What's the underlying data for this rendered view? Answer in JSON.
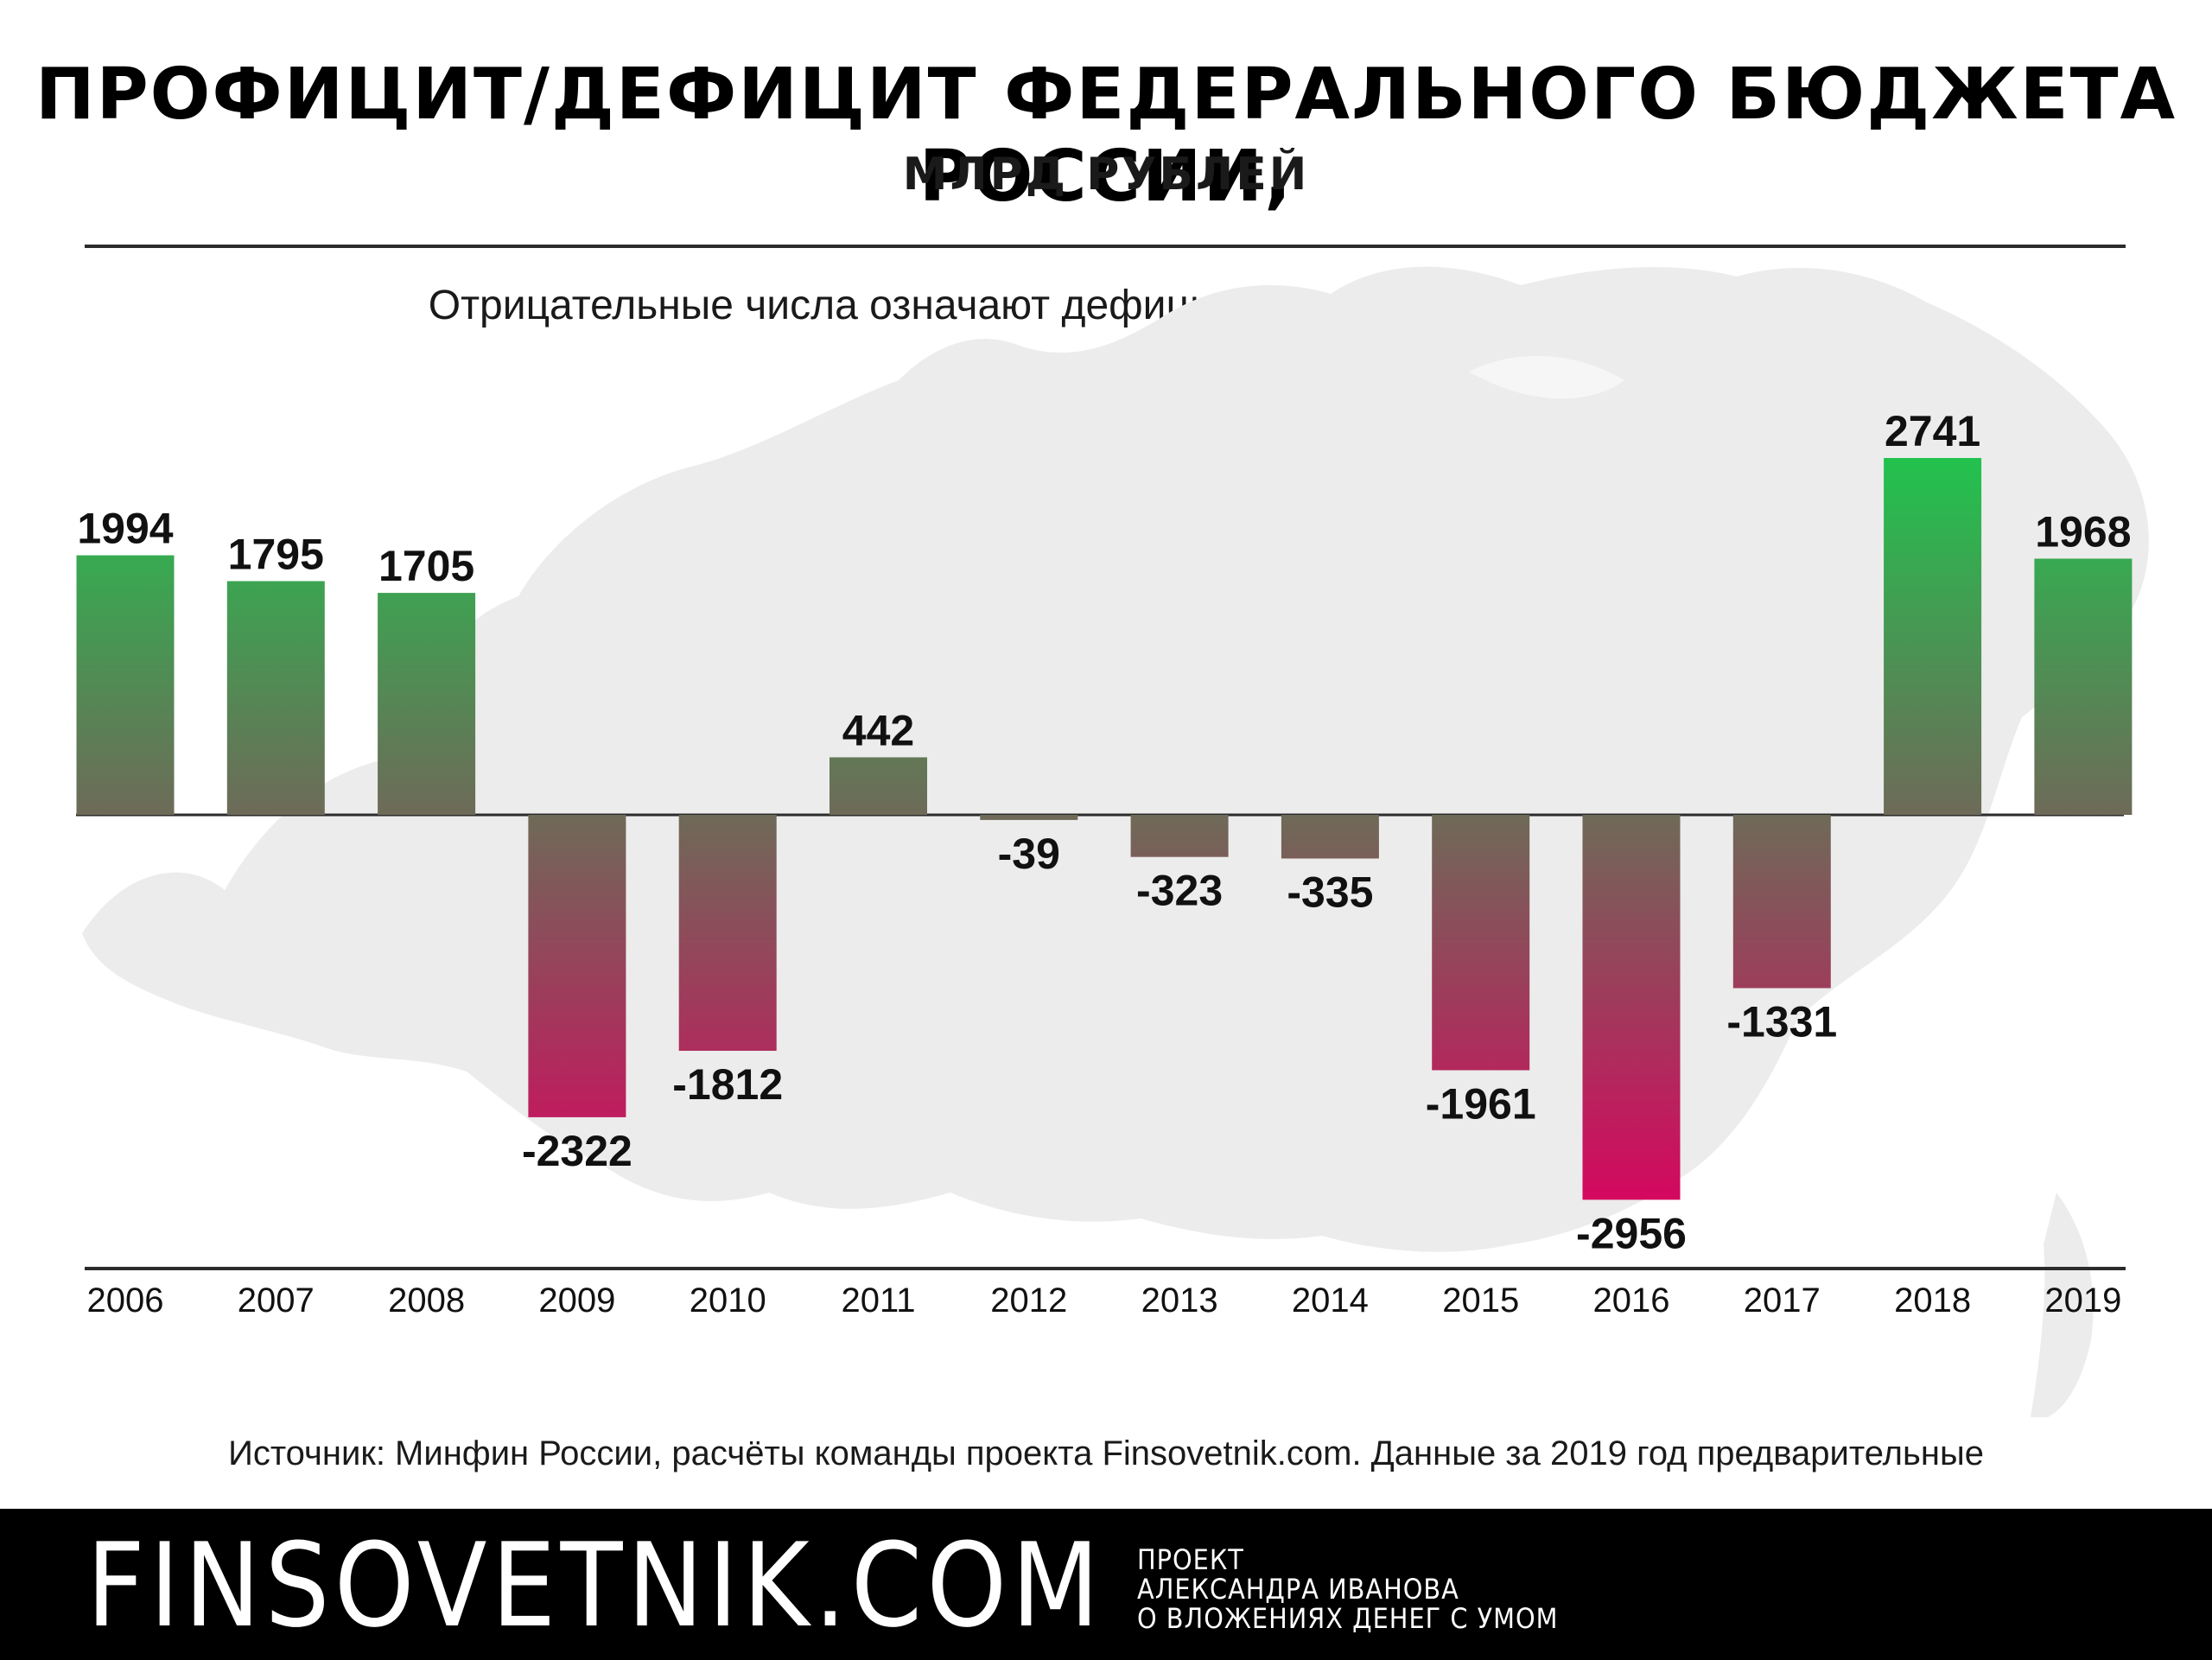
{
  "header": {
    "title": "ПРОФИЦИТ/ДЕФИЦИТ ФЕДЕРАЛЬНОГО БЮДЖЕТА РОССИИ,",
    "subtitle": "МЛРД РУБЛЕЙ",
    "note": "Отрицательные числа означают дефицит, положительные - профицит"
  },
  "chart_data": {
    "type": "bar",
    "title": "ПРОФИЦИТ/ДЕФИЦИТ ФЕДЕРАЛЬНОГО БЮДЖЕТА РОССИИ, МЛРД РУБЛЕЙ",
    "xlabel": "",
    "ylabel": "",
    "categories": [
      "2006",
      "2007",
      "2008",
      "2009",
      "2010",
      "2011",
      "2012",
      "2013",
      "2014",
      "2015",
      "2016",
      "2017",
      "2018",
      "2019"
    ],
    "values": [
      1994,
      1795,
      1705,
      -2322,
      -1812,
      442,
      -39,
      -323,
      -335,
      -1961,
      -2956,
      -1331,
      2741,
      1968
    ],
    "labels": [
      "1994",
      "1795",
      "1705",
      "-2322",
      "-1812",
      "442",
      "-39",
      "-323",
      "-335",
      "-1961",
      "-2956",
      "-1331",
      "2741",
      "1968"
    ],
    "ylim": [
      -3500,
      2741
    ],
    "grid": false,
    "legend": "none",
    "colors": {
      "positive_top": "#22c24e",
      "neutral": "#6e6a58",
      "negative_bottom": "#d4085f",
      "axis": "#2b2b2b"
    }
  },
  "footer": {
    "source": "Источник: Минфин России, расчёты команды проекта Finsovetnik.com. Данные за 2019 год предварительные",
    "brand": "FINSOVETNIK.COM",
    "tagline": [
      "ПРОЕКТ",
      "АЛЕКСАНДРА ИВАНОВА",
      "О ВЛОЖЕНИЯХ ДЕНЕГ С УМОМ"
    ]
  }
}
